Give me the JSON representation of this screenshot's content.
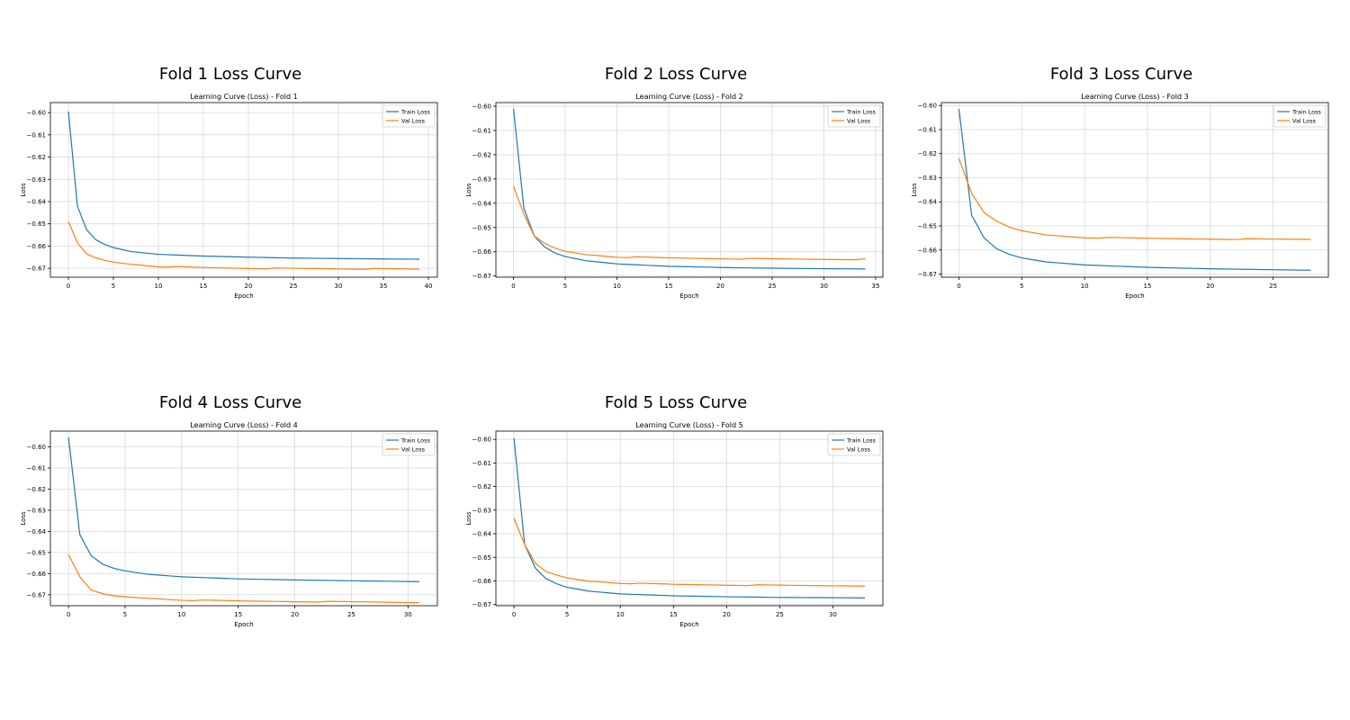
{
  "panels": [
    {
      "title": "Fold 1 Loss Curve"
    },
    {
      "title": "Fold 2 Loss Curve"
    },
    {
      "title": "Fold 3 Loss Curve"
    },
    {
      "title": "Fold 4 Loss Curve"
    },
    {
      "title": "Fold 5 Loss Curve"
    }
  ],
  "colors": {
    "train": "#1f77b4",
    "val": "#ff7f0e",
    "grid": "#d9d9d9"
  },
  "chart_data": [
    {
      "type": "line",
      "title": "Learning Curve (Loss) - Fold 1",
      "xlabel": "Epoch",
      "ylabel": "Loss",
      "xlim": [
        -2,
        41
      ],
      "ylim": [
        -0.674,
        -0.5955
      ],
      "xticks": [
        0,
        5,
        10,
        15,
        20,
        25,
        30,
        35,
        40
      ],
      "yticks": [
        -0.6,
        -0.61,
        -0.62,
        -0.63,
        -0.64,
        -0.65,
        -0.66,
        -0.67
      ],
      "ytick_labels": [
        "−0.60",
        "−0.61",
        "−0.62",
        "−0.63",
        "−0.64",
        "−0.65",
        "−0.66",
        "−0.67"
      ],
      "grid": true,
      "legend": "top-right",
      "series": [
        {
          "name": "Train Loss",
          "color": "#1f77b4",
          "anchors": [
            [
              0,
              -0.5995
            ],
            [
              1,
              -0.642
            ],
            [
              2,
              -0.6525
            ],
            [
              3,
              -0.657
            ],
            [
              4,
              -0.6592
            ],
            [
              5,
              -0.6607
            ],
            [
              7,
              -0.6625
            ],
            [
              10,
              -0.6637
            ],
            [
              15,
              -0.6645
            ],
            [
              20,
              -0.665
            ],
            [
              25,
              -0.6654
            ],
            [
              30,
              -0.6656
            ],
            [
              35,
              -0.6658
            ],
            [
              39,
              -0.6659
            ]
          ]
        },
        {
          "name": "Val Loss",
          "color": "#ff7f0e",
          "anchors": [
            [
              0,
              -0.649
            ],
            [
              1,
              -0.6585
            ],
            [
              2,
              -0.6635
            ],
            [
              3,
              -0.6652
            ],
            [
              4,
              -0.6664
            ],
            [
              5,
              -0.6672
            ],
            [
              7,
              -0.6682
            ],
            [
              10,
              -0.6692
            ],
            [
              15,
              -0.6697
            ],
            [
              20,
              -0.67
            ],
            [
              25,
              -0.6701
            ],
            [
              30,
              -0.6702
            ],
            [
              35,
              -0.6703
            ],
            [
              39,
              -0.6704
            ]
          ]
        }
      ]
    },
    {
      "type": "line",
      "title": "Learning Curve (Loss) - Fold 2",
      "xlabel": "Epoch",
      "ylabel": "Loss",
      "xlim": [
        -1.7,
        35.7
      ],
      "ylim": [
        -0.6705,
        -0.5985
      ],
      "xticks": [
        0,
        5,
        10,
        15,
        20,
        25,
        30,
        35
      ],
      "yticks": [
        -0.6,
        -0.61,
        -0.62,
        -0.63,
        -0.64,
        -0.65,
        -0.66,
        -0.67
      ],
      "ytick_labels": [
        "−0.60",
        "−0.61",
        "−0.62",
        "−0.63",
        "−0.64",
        "−0.65",
        "−0.66",
        "−0.67"
      ],
      "grid": true,
      "legend": "top-right",
      "series": [
        {
          "name": "Train Loss",
          "color": "#1f77b4",
          "anchors": [
            [
              0,
              -0.601
            ],
            [
              1,
              -0.642
            ],
            [
              2,
              -0.6535
            ],
            [
              3,
              -0.658
            ],
            [
              4,
              -0.6605
            ],
            [
              5,
              -0.662
            ],
            [
              7,
              -0.6637
            ],
            [
              10,
              -0.665
            ],
            [
              15,
              -0.666
            ],
            [
              20,
              -0.6665
            ],
            [
              25,
              -0.6668
            ],
            [
              30,
              -0.667
            ],
            [
              34,
              -0.6671
            ]
          ]
        },
        {
          "name": "Val Loss",
          "color": "#ff7f0e",
          "anchors": [
            [
              0,
              -0.633
            ],
            [
              1,
              -0.6445
            ],
            [
              2,
              -0.6535
            ],
            [
              3,
              -0.6565
            ],
            [
              4,
              -0.6585
            ],
            [
              5,
              -0.6598
            ],
            [
              7,
              -0.6612
            ],
            [
              10,
              -0.6621
            ],
            [
              15,
              -0.6626
            ],
            [
              20,
              -0.6628
            ],
            [
              25,
              -0.663
            ],
            [
              30,
              -0.6631
            ],
            [
              34,
              -0.6631
            ]
          ]
        }
      ]
    },
    {
      "type": "line",
      "title": "Learning Curve (Loss) - Fold 3",
      "xlabel": "Epoch",
      "ylabel": "Loss",
      "xlim": [
        -1.4,
        29.4
      ],
      "ylim": [
        -0.6713,
        -0.5988
      ],
      "xticks": [
        0,
        5,
        10,
        15,
        20,
        25
      ],
      "yticks": [
        -0.6,
        -0.61,
        -0.62,
        -0.63,
        -0.64,
        -0.65,
        -0.66,
        -0.67
      ],
      "ytick_labels": [
        "−0.60",
        "−0.61",
        "−0.62",
        "−0.63",
        "−0.64",
        "−0.65",
        "−0.66",
        "−0.67"
      ],
      "grid": true,
      "legend": "top-right",
      "series": [
        {
          "name": "Train Loss",
          "color": "#1f77b4",
          "anchors": [
            [
              0,
              -0.6015
            ],
            [
              1,
              -0.6455
            ],
            [
              2,
              -0.655
            ],
            [
              3,
              -0.6595
            ],
            [
              4,
              -0.6618
            ],
            [
              5,
              -0.6633
            ],
            [
              7,
              -0.665
            ],
            [
              10,
              -0.6662
            ],
            [
              15,
              -0.6672
            ],
            [
              20,
              -0.6678
            ],
            [
              25,
              -0.6682
            ],
            [
              28,
              -0.6684
            ]
          ]
        },
        {
          "name": "Val Loss",
          "color": "#ff7f0e",
          "anchors": [
            [
              0,
              -0.622
            ],
            [
              1,
              -0.6365
            ],
            [
              2,
              -0.6445
            ],
            [
              3,
              -0.648
            ],
            [
              4,
              -0.6505
            ],
            [
              5,
              -0.652
            ],
            [
              7,
              -0.6538
            ],
            [
              10,
              -0.6548
            ],
            [
              15,
              -0.6552
            ],
            [
              20,
              -0.6554
            ],
            [
              25,
              -0.6556
            ],
            [
              28,
              -0.6556
            ]
          ]
        }
      ]
    },
    {
      "type": "line",
      "title": "Learning Curve (Loss) - Fold 4",
      "xlabel": "Epoch",
      "ylabel": "Loss",
      "xlim": [
        -1.6,
        32.6
      ],
      "ylim": [
        -0.6752,
        -0.5925
      ],
      "xticks": [
        0,
        5,
        10,
        15,
        20,
        25,
        30
      ],
      "yticks": [
        -0.6,
        -0.61,
        -0.62,
        -0.63,
        -0.64,
        -0.65,
        -0.66,
        -0.67
      ],
      "ytick_labels": [
        "−0.60",
        "−0.61",
        "−0.62",
        "−0.63",
        "−0.64",
        "−0.65",
        "−0.66",
        "−0.67"
      ],
      "grid": true,
      "legend": "top-right",
      "series": [
        {
          "name": "Train Loss",
          "color": "#1f77b4",
          "anchors": [
            [
              0,
              -0.5955
            ],
            [
              1,
              -0.6415
            ],
            [
              2,
              -0.6515
            ],
            [
              3,
              -0.6555
            ],
            [
              4,
              -0.6575
            ],
            [
              5,
              -0.6587
            ],
            [
              7,
              -0.6603
            ],
            [
              10,
              -0.6615
            ],
            [
              15,
              -0.6625
            ],
            [
              20,
              -0.663
            ],
            [
              25,
              -0.6634
            ],
            [
              31,
              -0.6638
            ]
          ]
        },
        {
          "name": "Val Loss",
          "color": "#ff7f0e",
          "anchors": [
            [
              0,
              -0.651
            ],
            [
              1,
              -0.6615
            ],
            [
              2,
              -0.6678
            ],
            [
              3,
              -0.6695
            ],
            [
              4,
              -0.6705
            ],
            [
              5,
              -0.671
            ],
            [
              7,
              -0.6717
            ],
            [
              10,
              -0.6725
            ],
            [
              15,
              -0.673
            ],
            [
              20,
              -0.6732
            ],
            [
              25,
              -0.6734
            ],
            [
              31,
              -0.6737
            ]
          ]
        }
      ]
    },
    {
      "type": "line",
      "title": "Learning Curve (Loss) - Fold 5",
      "xlabel": "Epoch",
      "ylabel": "Loss",
      "xlim": [
        -1.7,
        34.7
      ],
      "ylim": [
        -0.6705,
        -0.5965
      ],
      "xticks": [
        0,
        5,
        10,
        15,
        20,
        25,
        30
      ],
      "yticks": [
        -0.6,
        -0.61,
        -0.62,
        -0.63,
        -0.64,
        -0.65,
        -0.66,
        -0.67
      ],
      "ytick_labels": [
        "−0.60",
        "−0.61",
        "−0.62",
        "−0.63",
        "−0.64",
        "−0.65",
        "−0.66",
        "−0.67"
      ],
      "grid": true,
      "legend": "top-right",
      "series": [
        {
          "name": "Train Loss",
          "color": "#1f77b4",
          "anchors": [
            [
              0,
              -0.5995
            ],
            [
              1,
              -0.6445
            ],
            [
              2,
              -0.6545
            ],
            [
              3,
              -0.659
            ],
            [
              4,
              -0.6612
            ],
            [
              5,
              -0.6627
            ],
            [
              7,
              -0.6643
            ],
            [
              10,
              -0.6655
            ],
            [
              15,
              -0.6663
            ],
            [
              20,
              -0.6667
            ],
            [
              25,
              -0.667
            ],
            [
              30,
              -0.6671
            ],
            [
              33,
              -0.6672
            ]
          ]
        },
        {
          "name": "Val Loss",
          "color": "#ff7f0e",
          "anchors": [
            [
              0,
              -0.6335
            ],
            [
              1,
              -0.6445
            ],
            [
              2,
              -0.6525
            ],
            [
              3,
              -0.656
            ],
            [
              4,
              -0.6575
            ],
            [
              5,
              -0.6587
            ],
            [
              7,
              -0.6601
            ],
            [
              10,
              -0.6609
            ],
            [
              15,
              -0.6615
            ],
            [
              20,
              -0.6617
            ],
            [
              25,
              -0.6619
            ],
            [
              30,
              -0.662
            ],
            [
              33,
              -0.662
            ]
          ]
        }
      ]
    }
  ]
}
